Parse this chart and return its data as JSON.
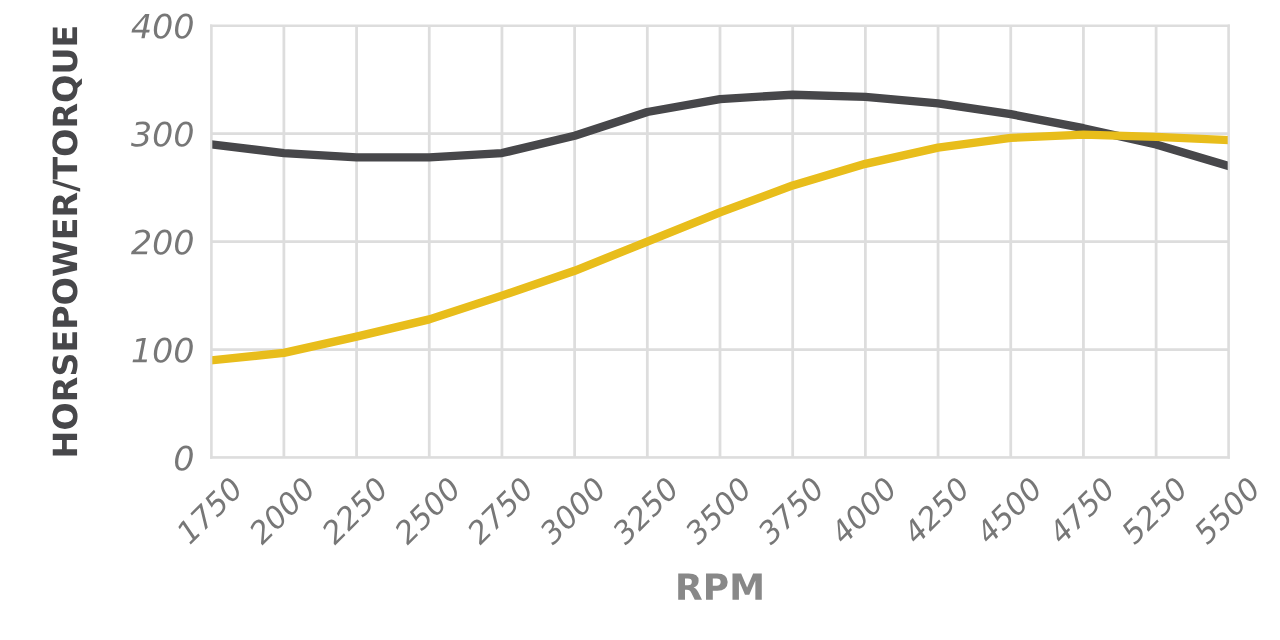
{
  "chart_data": {
    "type": "line",
    "xlabel": "RPM",
    "ylabel": "HORSEPOWER/TORQUE",
    "categories": [
      "1750",
      "2000",
      "2250",
      "2500",
      "2750",
      "3000",
      "3250",
      "3500",
      "3750",
      "4000",
      "4250",
      "4500",
      "4750",
      "5250",
      "5500"
    ],
    "series": [
      {
        "color": "#47474a",
        "values": [
          290,
          282,
          278,
          278,
          282,
          298,
          320,
          332,
          336,
          334,
          328,
          318,
          305,
          290,
          270
        ]
      },
      {
        "color": "#e8bd1b",
        "values": [
          90,
          97,
          112,
          128,
          150,
          173,
          200,
          227,
          252,
          272,
          287,
          296,
          299,
          297,
          294
        ]
      }
    ],
    "ylim": [
      0,
      400
    ],
    "yticks": [
      0,
      100,
      200,
      300,
      400
    ],
    "grid": true,
    "legend": false,
    "marker": "none",
    "line_style": "solid"
  }
}
